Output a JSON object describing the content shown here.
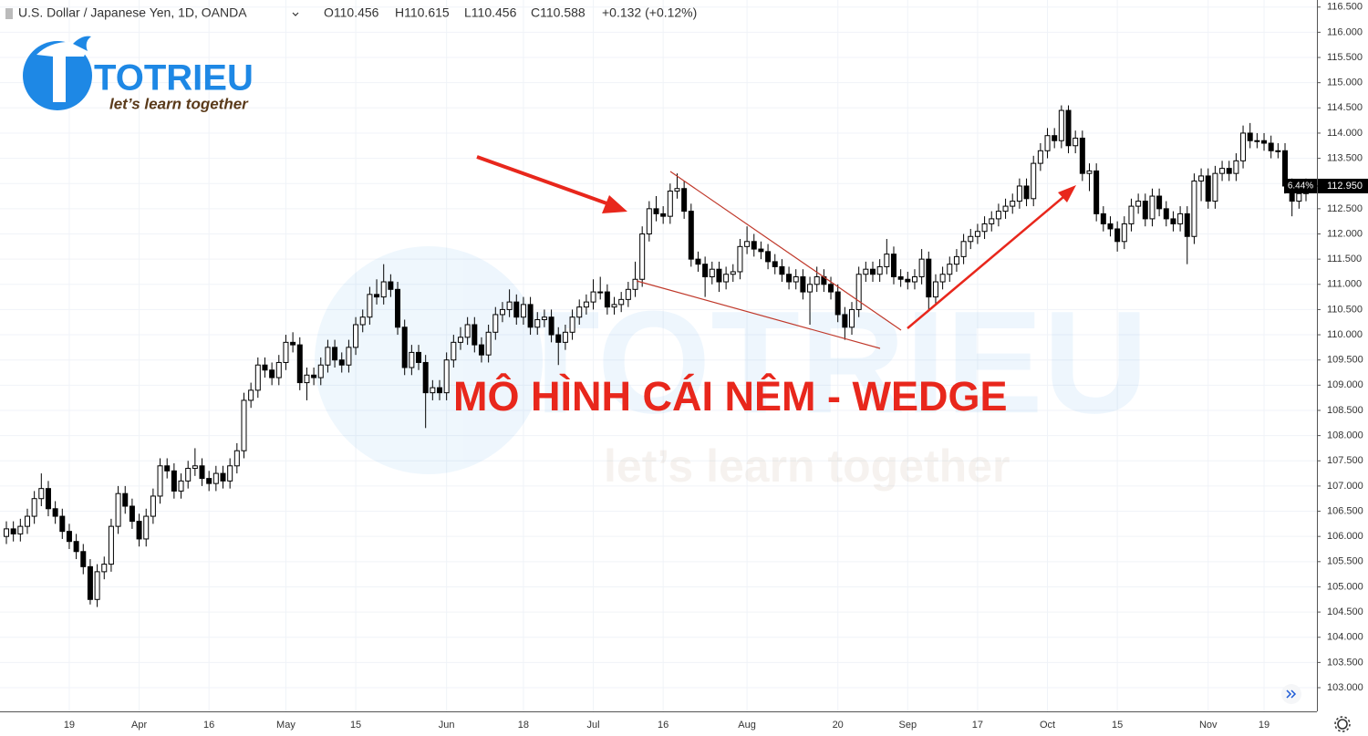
{
  "header": {
    "symbol": "U.S. Dollar / Japanese Yen, 1D, OANDA",
    "ohlc": [
      "O110.456",
      "H110.615",
      "L110.456",
      "C110.588",
      "+0.132 (+0.12%)"
    ]
  },
  "logo": {
    "name": "TOTRIEU",
    "slogan": "let’s learn together"
  },
  "chart_data": {
    "type": "candlestick",
    "annotation": "MÔ HÌNH CÁI NÊM - WEDGE",
    "up_color": "#ffffff",
    "down_color": "#000000",
    "wick_color": "#000000",
    "grid": true,
    "ylim": [
      102.53,
      116.64
    ],
    "yticks": [
      {
        "value": 103,
        "label": "103.000"
      },
      {
        "value": 103.5,
        "label": "103.500"
      },
      {
        "value": 104,
        "label": "104.000"
      },
      {
        "value": 104.5,
        "label": "104.500"
      },
      {
        "value": 105,
        "label": "105.000"
      },
      {
        "value": 105.5,
        "label": "105.500"
      },
      {
        "value": 106,
        "label": "106.000"
      },
      {
        "value": 106.5,
        "label": "106.500"
      },
      {
        "value": 107,
        "label": "107.000"
      },
      {
        "value": 107.5,
        "label": "107.500"
      },
      {
        "value": 108,
        "label": "108.000"
      },
      {
        "value": 108.5,
        "label": "108.500"
      },
      {
        "value": 109,
        "label": "109.000"
      },
      {
        "value": 109.5,
        "label": "109.500"
      },
      {
        "value": 110,
        "label": "110.000"
      },
      {
        "value": 110.5,
        "label": "110.500"
      },
      {
        "value": 111,
        "label": "111.000"
      },
      {
        "value": 111.5,
        "label": "111.500"
      },
      {
        "value": 112,
        "label": "112.000"
      },
      {
        "value": 112.5,
        "label": "112.500"
      },
      {
        "value": 113,
        "label": "113.000"
      },
      {
        "value": 113.5,
        "label": "113.500"
      },
      {
        "value": 114,
        "label": "114.000"
      },
      {
        "value": 114.5,
        "label": "114.500"
      },
      {
        "value": 115,
        "label": "115.000"
      },
      {
        "value": 115.5,
        "label": "115.500"
      },
      {
        "value": 116,
        "label": "116.000"
      },
      {
        "value": 116.5,
        "label": "116.500"
      }
    ],
    "last_price": {
      "value": 112.95,
      "label": "112.950"
    },
    "last_change": "6.44%",
    "categories": [
      null,
      null,
      null,
      null,
      null,
      null,
      null,
      null,
      null,
      "19",
      null,
      null,
      null,
      null,
      null,
      null,
      null,
      null,
      null,
      "Apr",
      null,
      null,
      null,
      null,
      null,
      null,
      null,
      null,
      null,
      "16",
      null,
      null,
      null,
      null,
      null,
      null,
      null,
      null,
      null,
      null,
      "May",
      null,
      null,
      null,
      null,
      null,
      null,
      null,
      null,
      null,
      "15",
      null,
      null,
      null,
      null,
      null,
      null,
      null,
      null,
      null,
      null,
      null,
      null,
      "Jun",
      null,
      null,
      null,
      null,
      null,
      null,
      null,
      null,
      null,
      null,
      "18",
      null,
      null,
      null,
      null,
      null,
      null,
      null,
      null,
      null,
      "Jul",
      null,
      null,
      null,
      null,
      null,
      null,
      null,
      null,
      null,
      "16",
      null,
      null,
      null,
      null,
      null,
      null,
      null,
      null,
      null,
      null,
      null,
      "Aug",
      null,
      null,
      null,
      null,
      null,
      null,
      null,
      null,
      null,
      null,
      null,
      null,
      "20",
      null,
      null,
      null,
      null,
      null,
      null,
      null,
      null,
      null,
      "Sep",
      null,
      null,
      null,
      null,
      null,
      null,
      null,
      null,
      null,
      "17",
      null,
      null,
      null,
      null,
      null,
      null,
      null,
      null,
      null,
      "Oct",
      null,
      null,
      null,
      null,
      null,
      null,
      null,
      null,
      null,
      "15",
      null,
      null,
      null,
      null,
      null,
      null,
      null,
      null,
      null,
      null,
      null,
      null,
      "Nov",
      null,
      null,
      null,
      null,
      null,
      null,
      null,
      "19",
      null,
      null,
      null,
      null,
      null,
      null
    ],
    "open": [
      106.0,
      106.15,
      106.05,
      106.2,
      106.4,
      106.75,
      106.95,
      106.55,
      106.4,
      106.1,
      105.9,
      105.7,
      105.4,
      104.75,
      105.3,
      105.45,
      106.2,
      106.85,
      106.6,
      106.3,
      105.95,
      106.4,
      106.8,
      107.4,
      107.3,
      106.9,
      107.1,
      107.35,
      107.4,
      107.15,
      107.05,
      107.25,
      107.1,
      107.4,
      107.7,
      108.7,
      108.9,
      109.4,
      109.3,
      109.15,
      109.45,
      109.85,
      109.8,
      109.05,
      109.2,
      109.15,
      109.4,
      109.75,
      109.5,
      109.4,
      109.75,
      110.2,
      110.35,
      110.8,
      110.75,
      111.05,
      110.9,
      110.15,
      109.35,
      109.65,
      109.45,
      108.85,
      108.95,
      108.85,
      109.5,
      109.85,
      109.95,
      110.2,
      109.8,
      109.6,
      110.05,
      110.4,
      110.5,
      110.65,
      110.35,
      110.6,
      110.15,
      110.3,
      110.35,
      110.0,
      109.85,
      110.05,
      110.35,
      110.55,
      110.65,
      110.85,
      110.85,
      110.55,
      110.6,
      110.7,
      110.9,
      111.1,
      112.0,
      112.5,
      112.4,
      112.35,
      112.85,
      112.9,
      112.45,
      111.5,
      111.4,
      111.15,
      111.3,
      111.05,
      111.2,
      111.25,
      111.75,
      111.85,
      111.7,
      111.65,
      111.45,
      111.35,
      111.2,
      111.05,
      111.15,
      110.85,
      111.0,
      111.15,
      111.0,
      110.85,
      110.4,
      110.15,
      110.5,
      111.2,
      111.3,
      111.2,
      111.35,
      111.6,
      111.15,
      111.1,
      111.05,
      111.15,
      111.5,
      110.75,
      111.05,
      111.2,
      111.4,
      111.55,
      111.85,
      111.95,
      112.05,
      112.2,
      112.3,
      112.45,
      112.55,
      112.65,
      112.95,
      112.7,
      113.4,
      113.65,
      113.95,
      113.85,
      114.45,
      113.75,
      113.9,
      113.2,
      113.25,
      112.4,
      112.2,
      112.1,
      111.85,
      112.2,
      112.55,
      112.65,
      112.3,
      112.75,
      112.5,
      112.3,
      112.2,
      112.4,
      111.95,
      113.05,
      113.15,
      112.65,
      113.2,
      113.3,
      113.2,
      113.45,
      114.0,
      113.85,
      113.85,
      113.8,
      113.65,
      113.65,
      112.95,
      112.65,
      112.8
    ],
    "high": [
      106.3,
      106.3,
      106.35,
      106.55,
      106.9,
      107.25,
      107.1,
      106.7,
      106.55,
      106.25,
      106.05,
      105.85,
      105.55,
      105.45,
      105.6,
      106.35,
      107.0,
      107.0,
      106.75,
      106.45,
      106.55,
      106.95,
      107.55,
      107.55,
      107.45,
      107.25,
      107.5,
      107.75,
      107.55,
      107.3,
      107.4,
      107.4,
      107.55,
      107.85,
      108.85,
      109.05,
      109.55,
      109.55,
      109.45,
      109.6,
      110.0,
      110.05,
      109.95,
      109.35,
      109.35,
      109.55,
      109.9,
      109.9,
      109.65,
      109.9,
      110.35,
      110.5,
      110.95,
      111.1,
      111.4,
      111.2,
      111.05,
      110.3,
      109.8,
      109.8,
      109.6,
      109.1,
      109.1,
      109.65,
      110.0,
      110.15,
      110.35,
      110.35,
      109.95,
      110.2,
      110.55,
      110.65,
      110.9,
      110.8,
      110.75,
      110.75,
      110.45,
      110.5,
      110.5,
      110.15,
      110.2,
      110.5,
      110.7,
      110.8,
      111.1,
      111.15,
      111.0,
      110.75,
      110.85,
      111.05,
      111.45,
      112.15,
      112.65,
      112.75,
      112.55,
      113.0,
      113.2,
      113.05,
      112.6,
      111.65,
      111.55,
      111.45,
      111.45,
      111.35,
      111.4,
      111.9,
      112.15,
      112.0,
      111.85,
      111.8,
      111.6,
      111.5,
      111.35,
      111.3,
      111.3,
      111.15,
      111.35,
      111.3,
      111.15,
      111.0,
      110.55,
      110.65,
      111.35,
      111.45,
      111.45,
      111.5,
      111.9,
      111.75,
      111.3,
      111.25,
      111.3,
      111.7,
      111.65,
      111.2,
      111.35,
      111.55,
      111.7,
      112.0,
      112.1,
      112.2,
      112.35,
      112.45,
      112.6,
      112.7,
      112.8,
      113.1,
      113.1,
      113.55,
      113.8,
      114.1,
      114.1,
      114.55,
      114.55,
      114.05,
      114.05,
      113.4,
      113.4,
      112.55,
      112.35,
      112.25,
      112.35,
      112.7,
      112.8,
      112.8,
      112.9,
      112.9,
      112.65,
      112.45,
      112.55,
      112.55,
      113.2,
      113.3,
      113.3,
      113.35,
      113.45,
      113.45,
      113.6,
      114.15,
      114.2,
      114.0,
      114.0,
      113.95,
      113.8,
      113.8,
      113.1,
      112.95,
      113.1
    ],
    "low": [
      105.85,
      105.9,
      105.9,
      106.05,
      106.25,
      106.6,
      106.4,
      106.25,
      105.95,
      105.75,
      105.55,
      105.25,
      104.65,
      104.6,
      105.15,
      105.3,
      106.05,
      106.45,
      106.15,
      105.8,
      105.8,
      106.25,
      106.65,
      107.15,
      106.75,
      106.75,
      106.95,
      107.2,
      107.0,
      106.9,
      106.9,
      106.95,
      106.95,
      107.25,
      107.55,
      108.55,
      108.75,
      109.15,
      109.0,
      109.0,
      109.3,
      109.65,
      108.9,
      108.7,
      109.0,
      109.0,
      109.25,
      109.35,
      109.25,
      109.25,
      109.6,
      110.05,
      110.2,
      110.6,
      110.6,
      110.75,
      110.0,
      109.2,
      109.2,
      109.3,
      108.15,
      108.7,
      108.7,
      108.7,
      109.35,
      109.7,
      109.8,
      109.65,
      109.45,
      109.45,
      109.9,
      110.25,
      110.35,
      110.2,
      110.2,
      110.0,
      110.0,
      110.15,
      109.85,
      109.4,
      109.7,
      109.9,
      110.2,
      110.4,
      110.5,
      110.7,
      110.4,
      110.4,
      110.45,
      110.55,
      110.75,
      110.95,
      111.85,
      112.25,
      112.2,
      112.2,
      112.7,
      112.3,
      111.35,
      111.25,
      110.75,
      111.0,
      110.85,
      110.9,
      111.05,
      111.1,
      111.6,
      111.55,
      111.5,
      111.3,
      111.2,
      111.05,
      110.9,
      110.9,
      110.7,
      110.2,
      110.85,
      110.85,
      110.7,
      110.25,
      109.9,
      110.0,
      110.35,
      111.05,
      111.05,
      111.05,
      111.2,
      111.0,
      110.95,
      110.9,
      110.9,
      111.0,
      110.5,
      110.6,
      110.9,
      111.05,
      111.25,
      111.4,
      111.7,
      111.8,
      111.9,
      112.05,
      112.15,
      112.3,
      112.4,
      112.5,
      112.55,
      112.55,
      113.25,
      113.5,
      113.7,
      113.7,
      113.6,
      113.6,
      113.05,
      112.85,
      112.25,
      112.05,
      111.95,
      111.65,
      111.7,
      112.05,
      112.4,
      112.15,
      112.15,
      112.35,
      112.15,
      112.05,
      112.05,
      111.4,
      111.8,
      112.65,
      112.5,
      112.5,
      113.05,
      113.05,
      113.05,
      113.3,
      113.7,
      113.7,
      113.65,
      113.5,
      113.5,
      112.8,
      112.35,
      112.5,
      112.65
    ],
    "close": [
      106.15,
      106.05,
      106.2,
      106.4,
      106.75,
      106.95,
      106.55,
      106.4,
      106.1,
      105.9,
      105.7,
      105.4,
      104.75,
      105.3,
      105.45,
      106.2,
      106.85,
      106.6,
      106.3,
      105.95,
      106.4,
      106.8,
      107.4,
      107.3,
      106.9,
      107.1,
      107.35,
      107.4,
      107.15,
      107.05,
      107.25,
      107.1,
      107.4,
      107.7,
      108.7,
      108.9,
      109.4,
      109.3,
      109.15,
      109.45,
      109.85,
      109.8,
      109.05,
      109.2,
      109.15,
      109.4,
      109.75,
      109.5,
      109.4,
      109.75,
      110.2,
      110.35,
      110.8,
      110.75,
      111.05,
      110.9,
      110.15,
      109.35,
      109.65,
      109.45,
      108.85,
      108.95,
      108.85,
      109.5,
      109.85,
      109.95,
      110.2,
      109.8,
      109.6,
      110.05,
      110.4,
      110.5,
      110.65,
      110.35,
      110.6,
      110.15,
      110.3,
      110.35,
      110.0,
      109.85,
      110.05,
      110.35,
      110.55,
      110.65,
      110.85,
      110.85,
      110.55,
      110.6,
      110.7,
      110.9,
      111.1,
      112.0,
      112.5,
      112.4,
      112.35,
      112.85,
      112.9,
      112.45,
      111.5,
      111.4,
      111.15,
      111.3,
      111.05,
      111.2,
      111.25,
      111.75,
      111.85,
      111.7,
      111.65,
      111.45,
      111.35,
      111.2,
      111.05,
      111.15,
      110.85,
      111.0,
      111.15,
      111.0,
      110.85,
      110.4,
      110.15,
      110.5,
      111.2,
      111.3,
      111.2,
      111.35,
      111.6,
      111.15,
      111.1,
      111.05,
      111.15,
      111.5,
      110.75,
      111.05,
      111.2,
      111.4,
      111.55,
      111.85,
      111.95,
      112.05,
      112.2,
      112.3,
      112.45,
      112.55,
      112.65,
      112.95,
      112.7,
      113.4,
      113.65,
      113.95,
      113.85,
      114.45,
      113.75,
      113.9,
      113.2,
      113.25,
      112.4,
      112.2,
      112.1,
      111.85,
      112.2,
      112.55,
      112.65,
      112.3,
      112.75,
      112.5,
      112.3,
      112.2,
      112.4,
      111.95,
      113.05,
      113.15,
      112.65,
      113.2,
      113.3,
      113.2,
      113.45,
      114.0,
      113.85,
      113.85,
      113.8,
      113.65,
      113.65,
      112.95,
      112.65,
      112.8,
      112.95
    ]
  }
}
